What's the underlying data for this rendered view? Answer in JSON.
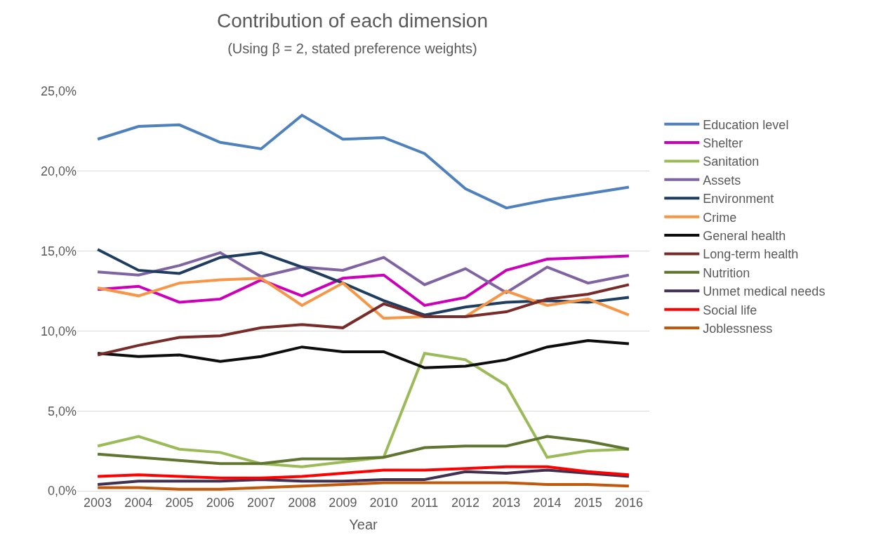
{
  "chart_data": {
    "type": "line",
    "title": "Contribution of each dimension",
    "subtitle": "(Using β = 2, stated preference weights)",
    "xlabel": "Year",
    "categories": [
      "2003",
      "2004",
      "2005",
      "2006",
      "2007",
      "2008",
      "2009",
      "2010",
      "2011",
      "2012",
      "2013",
      "2014",
      "2015",
      "2016"
    ],
    "ylim": [
      0,
      25
    ],
    "yticks": [
      {
        "value": 0,
        "label": "0,0%"
      },
      {
        "value": 5,
        "label": "5,0%"
      },
      {
        "value": 10,
        "label": "10,0%"
      },
      {
        "value": 15,
        "label": "15,0%"
      },
      {
        "value": 20,
        "label": "20,0%"
      },
      {
        "value": 25,
        "label": "25,0%"
      }
    ],
    "grid": "y",
    "legend": "right",
    "marker": "none",
    "line_style": "solid",
    "series": [
      {
        "name": "Education level",
        "color": "#4f81bd",
        "values": [
          22.0,
          22.8,
          22.9,
          21.8,
          21.4,
          23.5,
          22.0,
          22.1,
          21.1,
          18.9,
          17.7,
          18.2,
          18.6,
          19.0
        ]
      },
      {
        "name": "Shelter",
        "color": "#cc00b8",
        "values": [
          12.6,
          12.8,
          11.8,
          12.0,
          13.2,
          12.2,
          13.3,
          13.5,
          11.6,
          12.1,
          13.8,
          14.5,
          14.6,
          14.7
        ]
      },
      {
        "name": "Sanitation",
        "color": "#9bbb59",
        "values": [
          2.8,
          3.4,
          2.6,
          2.4,
          1.7,
          1.5,
          1.8,
          2.1,
          8.6,
          8.2,
          6.6,
          2.1,
          2.5,
          2.6
        ]
      },
      {
        "name": "Assets",
        "color": "#8064a2",
        "values": [
          13.7,
          13.5,
          14.1,
          14.9,
          13.4,
          14.0,
          13.8,
          14.6,
          12.9,
          13.9,
          12.4,
          14.0,
          13.0,
          13.5
        ]
      },
      {
        "name": "Environment",
        "color": "#1f3d5f",
        "values": [
          15.1,
          13.8,
          13.6,
          14.6,
          14.9,
          14.0,
          13.0,
          11.9,
          11.0,
          11.5,
          11.8,
          11.9,
          11.8,
          12.1
        ]
      },
      {
        "name": "Crime",
        "color": "#f79646",
        "values": [
          12.7,
          12.2,
          13.0,
          13.2,
          13.3,
          11.6,
          13.0,
          10.8,
          10.9,
          10.9,
          12.5,
          11.6,
          12.0,
          11.0
        ]
      },
      {
        "name": "General health",
        "color": "#0d0d0d",
        "values": [
          8.6,
          8.4,
          8.5,
          8.1,
          8.4,
          9.0,
          8.7,
          8.7,
          7.7,
          7.8,
          8.2,
          9.0,
          9.4,
          9.2
        ]
      },
      {
        "name": "Long-term health",
        "color": "#772c2a",
        "values": [
          8.5,
          9.1,
          9.6,
          9.7,
          10.2,
          10.4,
          10.2,
          11.7,
          10.9,
          10.9,
          11.2,
          12.0,
          12.3,
          12.9
        ]
      },
      {
        "name": "Nutrition",
        "color": "#5f7530",
        "values": [
          2.3,
          2.1,
          1.9,
          1.7,
          1.7,
          2.0,
          2.0,
          2.1,
          2.7,
          2.8,
          2.8,
          3.4,
          3.1,
          2.6
        ]
      },
      {
        "name": "Unmet medical needs",
        "color": "#403152",
        "values": [
          0.4,
          0.6,
          0.6,
          0.6,
          0.7,
          0.6,
          0.6,
          0.7,
          0.7,
          1.2,
          1.1,
          1.3,
          1.1,
          0.9
        ]
      },
      {
        "name": "Social life",
        "color": "#ff0000",
        "values": [
          0.9,
          1.0,
          0.9,
          0.8,
          0.8,
          0.9,
          1.1,
          1.3,
          1.3,
          1.4,
          1.5,
          1.5,
          1.2,
          1.0
        ]
      },
      {
        "name": "Joblessness",
        "color": "#c0590c",
        "values": [
          0.2,
          0.2,
          0.1,
          0.1,
          0.2,
          0.3,
          0.4,
          0.5,
          0.5,
          0.5,
          0.5,
          0.4,
          0.4,
          0.3
        ]
      }
    ]
  }
}
